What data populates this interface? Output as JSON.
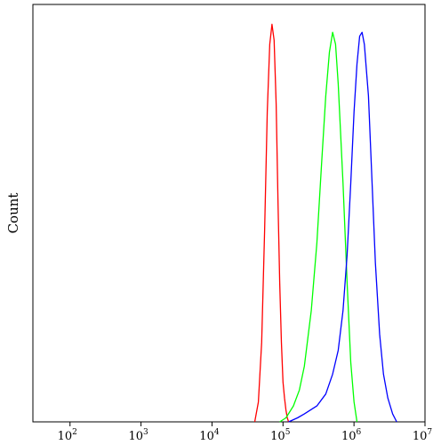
{
  "chart_data": {
    "type": "line",
    "title": "",
    "xlabel": "",
    "ylabel": "Count",
    "x_scale": "log",
    "xlim": [
      30,
      10000000
    ],
    "ylim": [
      0,
      1.05
    ],
    "grid": false,
    "legend": "none",
    "x_ticks": [
      {
        "value": 100,
        "base": "10",
        "exp": "2"
      },
      {
        "value": 1000,
        "base": "10",
        "exp": "3"
      },
      {
        "value": 10000,
        "base": "10",
        "exp": "4"
      },
      {
        "value": 100000,
        "base": "10",
        "exp": "5"
      },
      {
        "value": 1000000,
        "base": "10",
        "exp": "6"
      },
      {
        "value": 10000000,
        "base": "10",
        "exp": "7"
      }
    ],
    "series": [
      {
        "color": "#ff0000",
        "x": [
          40000,
          45000,
          50000,
          55000,
          60000,
          65000,
          70000,
          75000,
          80000,
          85000,
          90000,
          95000,
          100000,
          105000,
          110000,
          115000,
          120000
        ],
        "y": [
          0.0,
          0.05,
          0.2,
          0.48,
          0.78,
          0.95,
          1.0,
          0.96,
          0.8,
          0.55,
          0.35,
          0.2,
          0.1,
          0.06,
          0.03,
          0.01,
          0.0
        ]
      },
      {
        "color": "#00ff00",
        "x": [
          90000,
          110000,
          140000,
          170000,
          200000,
          250000,
          300000,
          350000,
          400000,
          450000,
          500000,
          550000,
          600000,
          700000,
          800000,
          900000,
          1000000,
          1100000
        ],
        "y": [
          0.0,
          0.01,
          0.04,
          0.08,
          0.14,
          0.28,
          0.45,
          0.65,
          0.82,
          0.93,
          0.98,
          0.95,
          0.85,
          0.6,
          0.35,
          0.15,
          0.05,
          0.0
        ]
      },
      {
        "color": "#0000ff",
        "x": [
          120000,
          160000,
          200000,
          300000,
          400000,
          500000,
          600000,
          700000,
          800000,
          900000,
          1000000,
          1100000,
          1200000,
          1300000,
          1400000,
          1600000,
          1800000,
          2000000,
          2300000,
          2600000,
          3000000,
          3500000,
          4000000
        ],
        "y": [
          0.0,
          0.01,
          0.02,
          0.04,
          0.07,
          0.12,
          0.18,
          0.28,
          0.42,
          0.6,
          0.78,
          0.9,
          0.97,
          0.98,
          0.95,
          0.82,
          0.6,
          0.4,
          0.22,
          0.12,
          0.06,
          0.02,
          0.0
        ]
      }
    ]
  }
}
